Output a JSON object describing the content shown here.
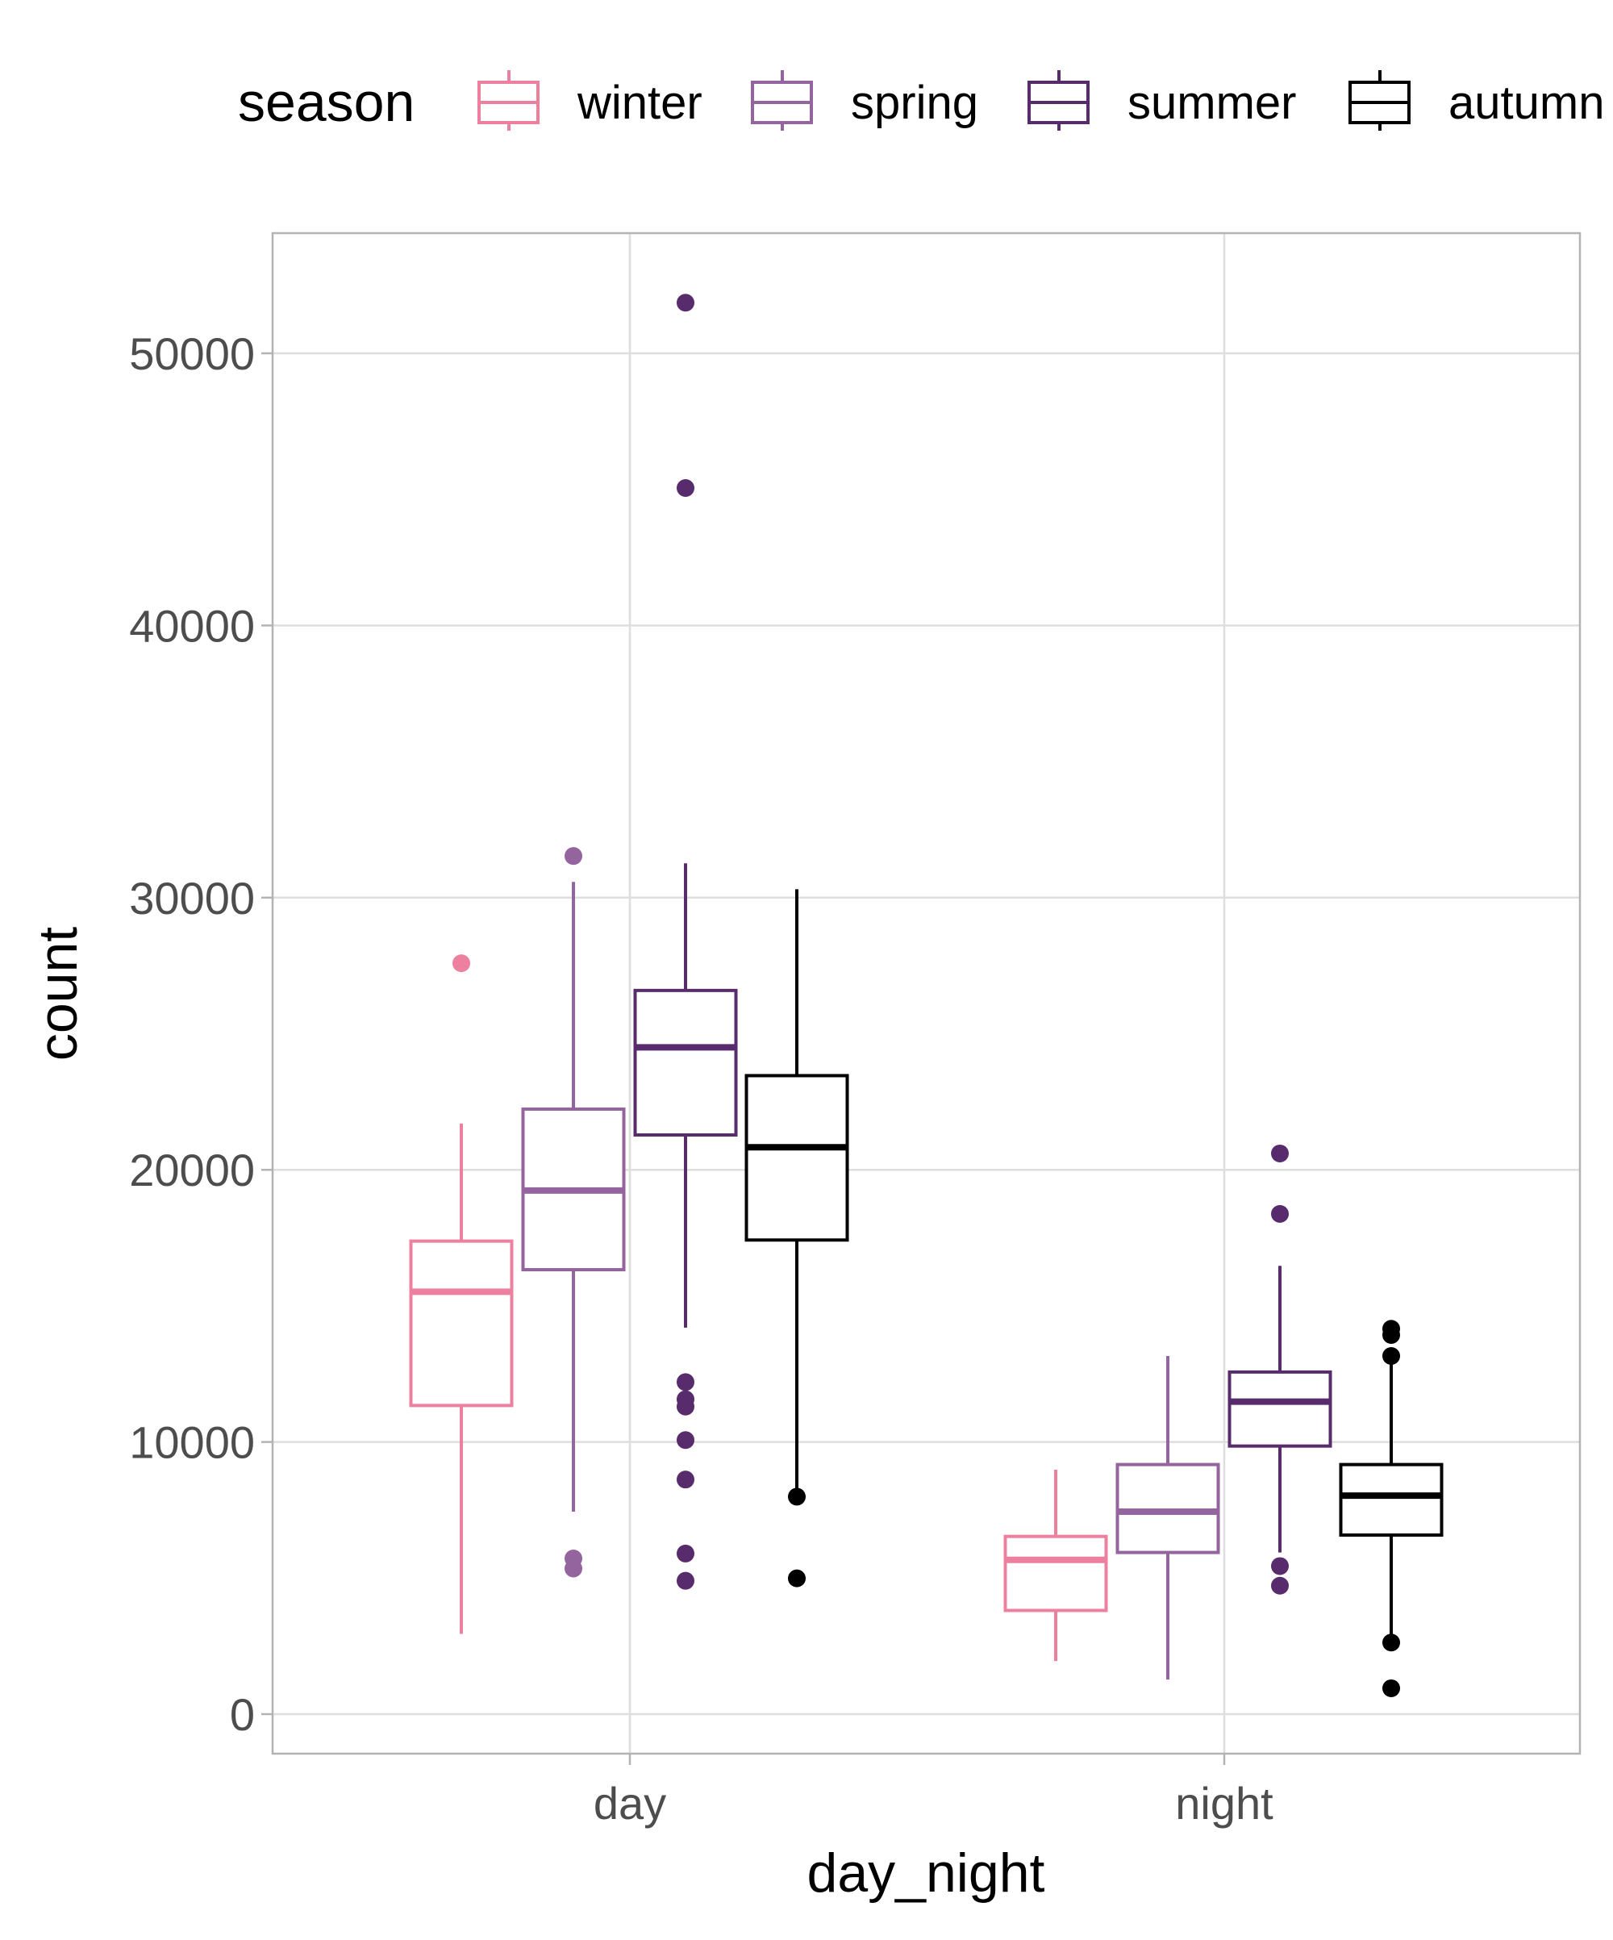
{
  "chart_data": {
    "type": "boxplot",
    "xlabel": "day_night",
    "ylabel": "count",
    "ylim": [
      -1500,
      54000
    ],
    "yticks": [
      0,
      10000,
      20000,
      30000,
      40000,
      50000
    ],
    "categories": [
      "day",
      "night"
    ],
    "grid": true,
    "legend": {
      "title": "season",
      "position": "top",
      "entries": [
        "winter",
        "spring",
        "summer",
        "autumn"
      ]
    },
    "series": [
      {
        "name": "winter",
        "color": "#ED7F9F",
        "boxes": [
          {
            "category": "day",
            "lower": 2950,
            "q1": 11340,
            "median": 15520,
            "q3": 17380,
            "upper": 21700,
            "outliers": [
              27590
            ]
          },
          {
            "category": "night",
            "lower": 1950,
            "q1": 3810,
            "median": 5670,
            "q3": 6530,
            "upper": 8980,
            "outliers": []
          }
        ]
      },
      {
        "name": "spring",
        "color": "#94649E",
        "boxes": [
          {
            "category": "day",
            "lower": 7440,
            "q1": 16330,
            "median": 19240,
            "q3": 22230,
            "upper": 30580,
            "outliers": [
              31530,
              5720,
              5350
            ]
          },
          {
            "category": "night",
            "lower": 1270,
            "q1": 5940,
            "median": 7440,
            "q3": 9170,
            "upper": 13160,
            "outliers": []
          }
        ]
      },
      {
        "name": "summer",
        "color": "#582C6C",
        "boxes": [
          {
            "category": "day",
            "lower": 14200,
            "q1": 21280,
            "median": 24500,
            "q3": 26590,
            "upper": 31260,
            "outliers": [
              51860,
              45050,
              12200,
              11570,
              11300,
              10070,
              8620,
              5900,
              4900
            ]
          },
          {
            "category": "night",
            "lower": 5940,
            "q1": 9850,
            "median": 11480,
            "q3": 12570,
            "upper": 16470,
            "outliers": [
              20600,
              18380,
              5440,
              4720
            ]
          }
        ]
      },
      {
        "name": "autumn",
        "color": "#000000",
        "boxes": [
          {
            "category": "day",
            "lower": 7990,
            "q1": 17420,
            "median": 20830,
            "q3": 23460,
            "upper": 30310,
            "outliers": [
              7990,
              4990
            ]
          },
          {
            "category": "night",
            "lower": 2630,
            "q1": 6580,
            "median": 8030,
            "q3": 9170,
            "upper": 13160,
            "outliers": [
              14160,
              13930,
              13160,
              2630,
              950
            ]
          }
        ]
      }
    ]
  }
}
